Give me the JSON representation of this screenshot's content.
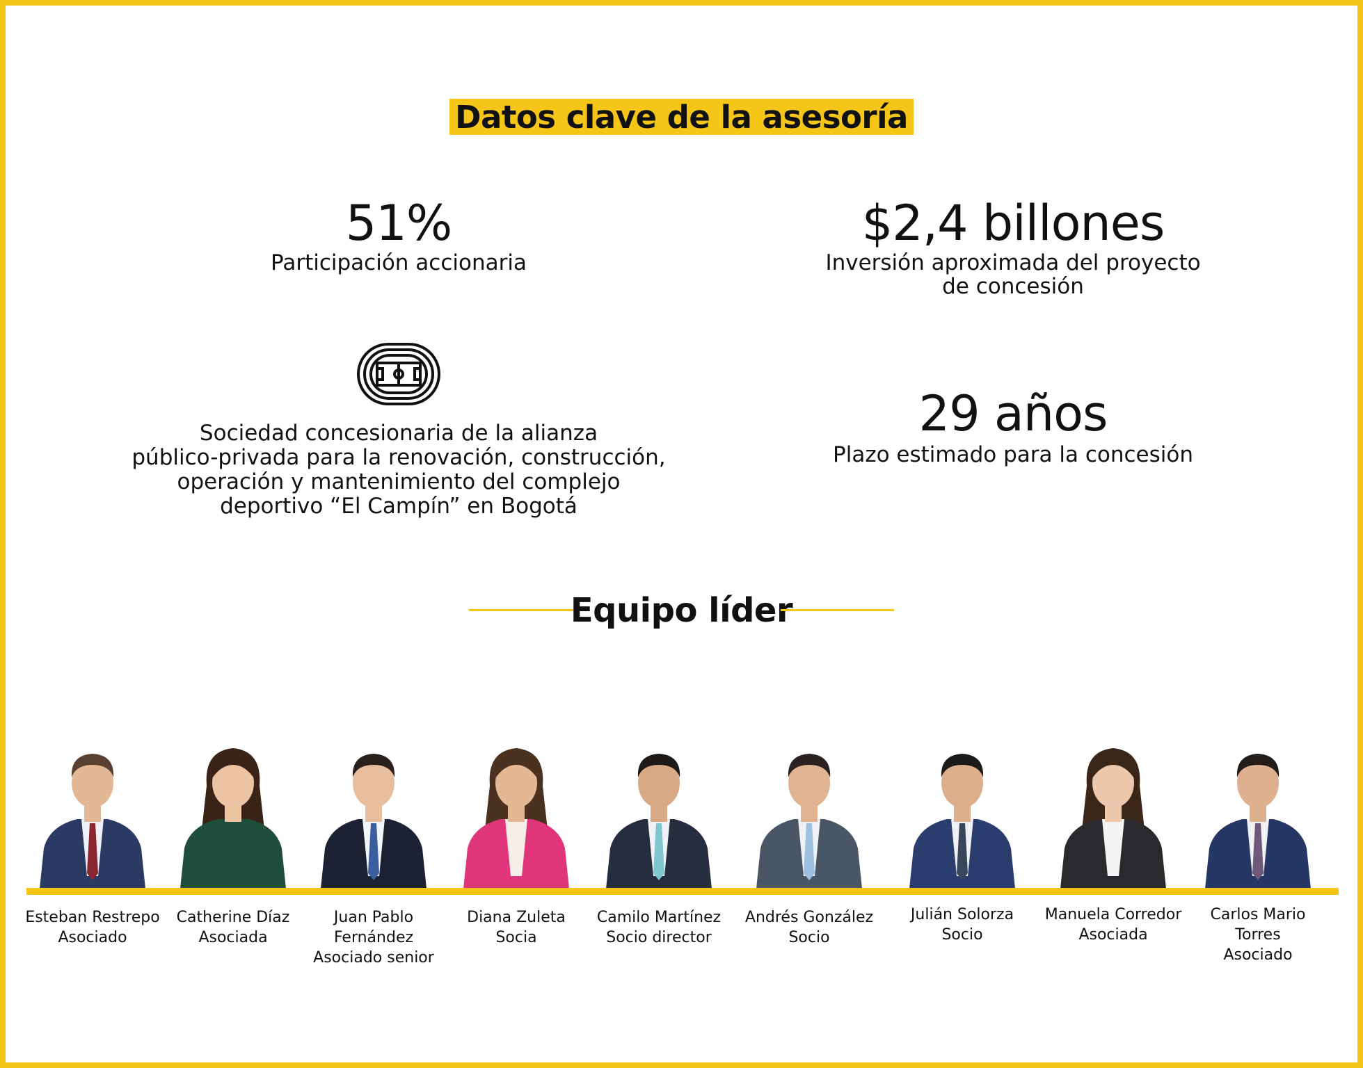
{
  "header": {
    "title": "Datos clave de la asesoría"
  },
  "stats": {
    "participation": {
      "value": "51%",
      "label": "Participación accionaria"
    },
    "investment": {
      "value": "$2,4 billones",
      "label_line1": "Inversión aproximada del proyecto",
      "label_line2": "de concesión"
    },
    "term": {
      "value": "29 años",
      "label": "Plazo estimado para la concesión"
    },
    "concession": {
      "icon": "stadium-icon",
      "lines": [
        "Sociedad concesionaria de la alianza",
        "público-privada para la renovación, construcción,",
        "operación y mantenimiento del complejo",
        "deportivo “El Campín” en Bogotá"
      ]
    }
  },
  "team": {
    "title": "Equipo líder",
    "members": [
      {
        "name_lines": [
          "Esteban Restrepo"
        ],
        "role": "Asociado",
        "suit": "#2b3a63",
        "tie": "#8a2630",
        "shirt": "#eef1f6",
        "hair": "#5a4030",
        "skin": "#e2b896",
        "female": false
      },
      {
        "name_lines": [
          "Catherine Díaz"
        ],
        "role": "Asociada",
        "suit": "#1f4f3c",
        "tie": "",
        "shirt": "",
        "hair": "#3a2418",
        "skin": "#ecc3a3",
        "female": true
      },
      {
        "name_lines": [
          "Juan Pablo",
          "Fernández"
        ],
        "role": "Asociado senior",
        "suit": "#1c2233",
        "tie": "#3b5f9e",
        "shirt": "#f3f5f8",
        "hair": "#2a211c",
        "skin": "#e6bd9d",
        "female": false
      },
      {
        "name_lines": [
          "Diana Zuleta"
        ],
        "role": "Socia",
        "suit": "#e0357a",
        "tie": "",
        "shirt": "#f5eee8",
        "hair": "#4a3120",
        "skin": "#e4b894",
        "female": true
      },
      {
        "name_lines": [
          "Camilo Martínez"
        ],
        "role": "Socio director",
        "suit": "#262d3f",
        "tie": "#7fc6cf",
        "shirt": "#eef2f6",
        "hair": "#1e1a18",
        "skin": "#d9a987",
        "female": false
      },
      {
        "name_lines": [
          "Andrés González"
        ],
        "role": "Socio",
        "suit": "#4a5566",
        "tie": "#9fc0df",
        "shirt": "#eef2f7",
        "hair": "#2a2220",
        "skin": "#e0b393",
        "female": false
      },
      {
        "name_lines": [
          "Julián Solorza"
        ],
        "role": "Socio",
        "suit": "#2b3d6e",
        "tie": "#39465c",
        "shirt": "#eef1f6",
        "hair": "#1d1a1a",
        "skin": "#dcae8c",
        "female": false
      },
      {
        "name_lines": [
          "Manuela Corredor"
        ],
        "role": "Asociada",
        "suit": "#2a2a2e",
        "tie": "",
        "shirt": "#f4f4f4",
        "hair": "#3a2618",
        "skin": "#ecc7ab",
        "female": true
      },
      {
        "name_lines": [
          "Carlos Mario",
          "Torres"
        ],
        "role": "Asociado",
        "suit": "#263765",
        "tie": "#6f5a7c",
        "shirt": "#f0f2f6",
        "hair": "#231d1a",
        "skin": "#deb090",
        "female": false
      }
    ]
  },
  "colors": {
    "accent": "#F5C518",
    "text": "#111111",
    "background": "#ffffff"
  }
}
